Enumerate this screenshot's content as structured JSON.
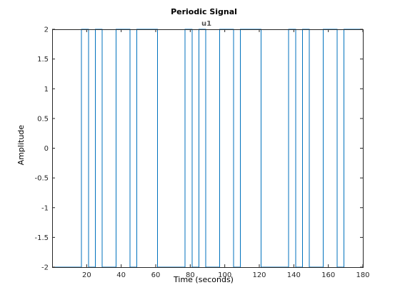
{
  "chart_data": {
    "type": "line",
    "title": "Periodic Signal",
    "subtitle": "u1",
    "xlabel": "Time (seconds)",
    "ylabel": "Amplitude",
    "xlim": [
      0,
      180
    ],
    "ylim": [
      -2,
      2
    ],
    "x_ticks": [
      20,
      40,
      60,
      80,
      100,
      120,
      140,
      160,
      180
    ],
    "x_tick_labels": [
      "20",
      "40",
      "60",
      "80",
      "100",
      "120",
      "140",
      "160",
      "180"
    ],
    "y_ticks": [
      -2,
      -1.5,
      -1,
      -0.5,
      0,
      0.5,
      1,
      1.5,
      2
    ],
    "y_tick_labels": [
      "-2",
      "-1.5",
      "-1",
      "-0.5",
      "0",
      "0.5",
      "1",
      "1.5",
      "2"
    ],
    "grid": false,
    "series": [
      {
        "color": "#0072bd",
        "x": [
          0,
          17,
          17,
          21,
          21,
          25,
          25,
          29,
          29,
          37,
          37,
          45,
          45,
          49,
          49,
          61,
          61,
          77,
          77,
          81,
          81,
          85,
          85,
          89,
          89,
          97,
          97,
          105,
          105,
          109,
          109,
          121,
          121,
          137,
          137,
          141,
          141,
          145,
          145,
          149,
          149,
          157,
          157,
          165,
          165,
          169,
          169,
          180
        ],
        "y": [
          -2,
          -2,
          2,
          2,
          -2,
          -2,
          2,
          2,
          -2,
          -2,
          2,
          2,
          -2,
          -2,
          2,
          2,
          -2,
          -2,
          2,
          2,
          -2,
          -2,
          2,
          2,
          -2,
          -2,
          2,
          2,
          -2,
          -2,
          2,
          2,
          -2,
          -2,
          2,
          2,
          -2,
          -2,
          2,
          2,
          -2,
          -2,
          2,
          2,
          -2,
          -2,
          2,
          2
        ]
      }
    ]
  },
  "colors": {
    "axes": "#262626",
    "line": "#0072bd",
    "background": "#ffffff"
  }
}
